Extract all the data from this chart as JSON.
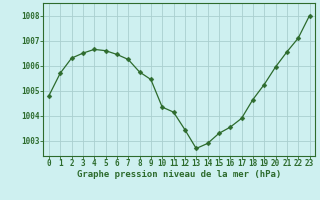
{
  "x": [
    0,
    1,
    2,
    3,
    4,
    5,
    6,
    7,
    8,
    9,
    10,
    11,
    12,
    13,
    14,
    15,
    16,
    17,
    18,
    19,
    20,
    21,
    22,
    23
  ],
  "y": [
    1004.8,
    1005.7,
    1006.3,
    1006.5,
    1006.65,
    1006.6,
    1006.45,
    1006.25,
    1005.75,
    1005.45,
    1004.35,
    1004.15,
    1003.45,
    1002.7,
    1002.9,
    1003.3,
    1003.55,
    1003.9,
    1004.65,
    1005.25,
    1005.95,
    1006.55,
    1007.1,
    1008.0
  ],
  "line_color": "#2d6b2d",
  "marker": "D",
  "marker_size": 2.5,
  "bg_color": "#cef0f0",
  "grid_color": "#aacfcf",
  "ylabel_ticks": [
    1003,
    1004,
    1005,
    1006,
    1007,
    1008
  ],
  "xlabel": "Graphe pression niveau de la mer (hPa)",
  "ylim": [
    1002.4,
    1008.5
  ],
  "xlim": [
    -0.5,
    23.5
  ],
  "xlabel_fontsize": 6.5,
  "tick_fontsize": 5.5,
  "tick_color": "#2d6b2d",
  "spine_color": "#2d6b2d",
  "grid_linewidth": 0.6,
  "line_linewidth": 0.9
}
